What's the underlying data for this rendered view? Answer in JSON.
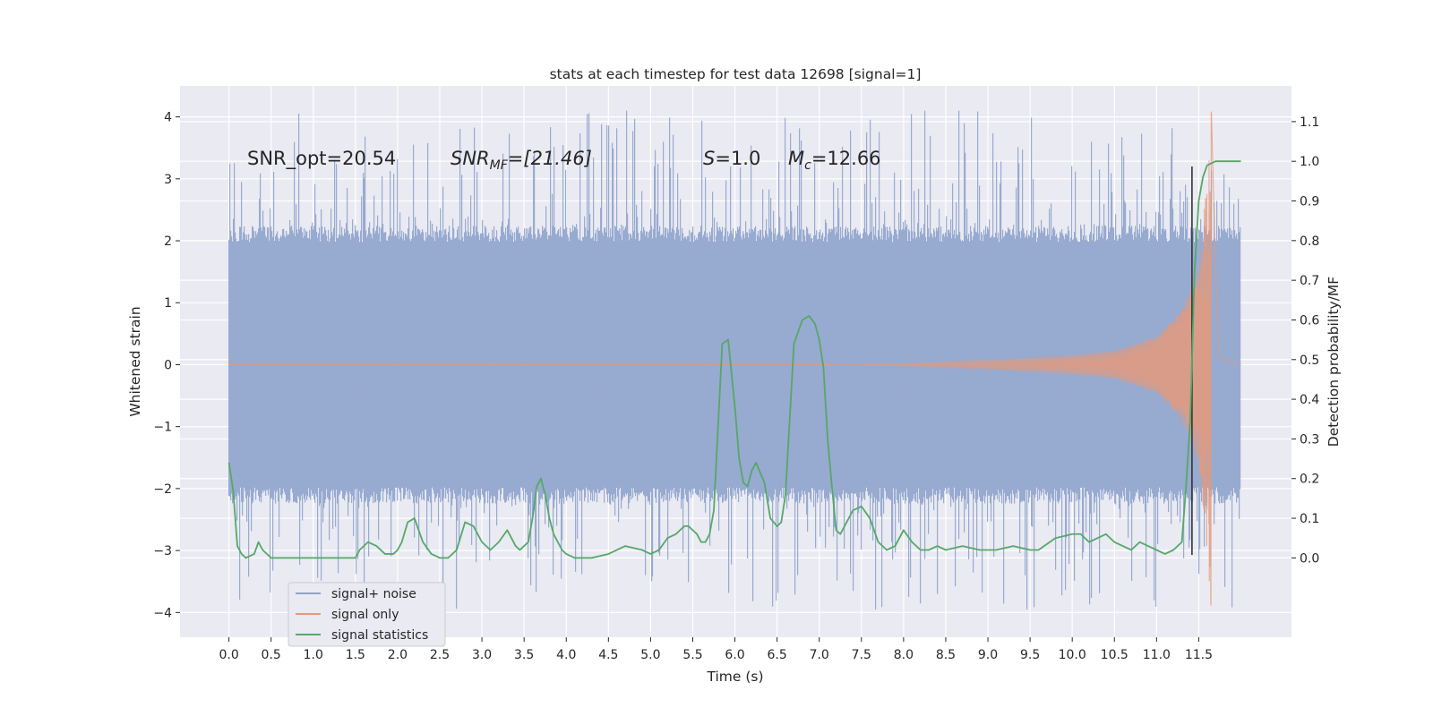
{
  "chart_data": {
    "type": "line",
    "title": "stats at each timestep for test data 12698 [signal=1]",
    "xlabel": "Time (s)",
    "ylabel": "Whitened strain",
    "ylabel_right": "Detection probability/MF",
    "xlim": [
      -0.58,
      12.6
    ],
    "ylim": [
      -4.4,
      4.5
    ],
    "ylim_right": [
      -0.2,
      1.19
    ],
    "x_ticks": [
      0.0,
      0.5,
      1.0,
      1.5,
      2.0,
      2.5,
      3.0,
      3.5,
      4.0,
      4.5,
      5.0,
      5.5,
      6.0,
      6.5,
      7.0,
      7.5,
      8.0,
      8.5,
      9.0,
      9.5,
      10.0,
      10.5,
      11.0,
      11.5
    ],
    "y_ticks": [
      -4,
      -3,
      -2,
      -1,
      0,
      1,
      2,
      3,
      4
    ],
    "y_ticks_right": [
      0.0,
      0.1,
      0.2,
      0.3,
      0.4,
      0.5,
      0.6,
      0.7,
      0.8,
      0.9,
      1.0,
      1.1
    ],
    "grid": true,
    "legend_position": "lower-left",
    "annotations": {
      "snr_opt": "SNR_opt=20.54",
      "snr_mf_label": "SNR",
      "snr_mf_sub": "MF",
      "snr_mf_value": "=[21.46]",
      "s_label": "S",
      "s_value": "=1.0",
      "mc_label": "M",
      "mc_sub": "c",
      "mc_value": "=12.66"
    },
    "series": [
      {
        "name": "signal+ noise",
        "axis": "left",
        "color": "#8fa3cc",
        "x_range": [
          0.0,
          12.0
        ],
        "envelope": {
          "typical_lower": -2.2,
          "typical_upper": 2.2,
          "peak_lower": -3.95,
          "peak_upper": 4.1
        }
      },
      {
        "name": "signal only",
        "axis": "left",
        "color": "#e39a7b",
        "x_range": [
          0.0,
          12.0
        ],
        "description": "chirp, amplitude growing to peak near 11.65 s",
        "amplitude_points": [
          [
            0.0,
            0.0
          ],
          [
            7.0,
            0.005
          ],
          [
            8.0,
            0.02
          ],
          [
            9.0,
            0.07
          ],
          [
            10.0,
            0.15
          ],
          [
            10.5,
            0.22
          ],
          [
            11.0,
            0.45
          ],
          [
            11.3,
            0.9
          ],
          [
            11.5,
            1.6
          ],
          [
            11.6,
            3.0
          ],
          [
            11.65,
            4.1
          ],
          [
            11.7,
            1.5
          ],
          [
            11.75,
            0.1
          ],
          [
            12.0,
            0.0
          ]
        ]
      },
      {
        "name": "signal statistics",
        "axis": "right",
        "color": "#55a868",
        "x": [
          0.0,
          0.05,
          0.1,
          0.15,
          0.2,
          0.3,
          0.35,
          0.4,
          0.5,
          0.6,
          0.7,
          0.8,
          0.9,
          1.0,
          1.2,
          1.4,
          1.5,
          1.55,
          1.65,
          1.75,
          1.85,
          1.95,
          2.0,
          2.05,
          2.12,
          2.2,
          2.3,
          2.4,
          2.5,
          2.6,
          2.7,
          2.8,
          2.9,
          3.0,
          3.1,
          3.2,
          3.3,
          3.4,
          3.45,
          3.5,
          3.55,
          3.6,
          3.65,
          3.7,
          3.75,
          3.8,
          3.85,
          3.9,
          3.95,
          4.0,
          4.1,
          4.2,
          4.3,
          4.5,
          4.7,
          4.9,
          5.0,
          5.1,
          5.2,
          5.3,
          5.4,
          5.45,
          5.5,
          5.55,
          5.6,
          5.65,
          5.7,
          5.75,
          5.85,
          5.92,
          6.0,
          6.05,
          6.1,
          6.15,
          6.2,
          6.25,
          6.35,
          6.42,
          6.5,
          6.55,
          6.6,
          6.7,
          6.8,
          6.88,
          6.95,
          7.0,
          7.05,
          7.1,
          7.15,
          7.2,
          7.25,
          7.3,
          7.4,
          7.5,
          7.6,
          7.7,
          7.8,
          7.9,
          8.0,
          8.1,
          8.2,
          8.3,
          8.4,
          8.5,
          8.7,
          8.9,
          9.1,
          9.3,
          9.5,
          9.6,
          9.8,
          10.0,
          10.1,
          10.2,
          10.3,
          10.4,
          10.5,
          10.6,
          10.7,
          10.8,
          10.9,
          11.0,
          11.1,
          11.2,
          11.3,
          11.35,
          11.4,
          11.45,
          11.5,
          11.55,
          11.6,
          11.7,
          11.8,
          11.9,
          12.0
        ],
        "values": [
          0.24,
          0.17,
          0.03,
          0.01,
          0.0,
          0.01,
          0.04,
          0.02,
          0.0,
          0.0,
          0.0,
          0.0,
          0.0,
          0.0,
          0.0,
          0.0,
          0.0,
          0.02,
          0.04,
          0.03,
          0.01,
          0.01,
          0.02,
          0.04,
          0.09,
          0.1,
          0.04,
          0.01,
          0.0,
          0.0,
          0.02,
          0.09,
          0.08,
          0.04,
          0.02,
          0.04,
          0.07,
          0.03,
          0.02,
          0.03,
          0.04,
          0.1,
          0.18,
          0.2,
          0.16,
          0.1,
          0.06,
          0.04,
          0.02,
          0.01,
          0.0,
          0.0,
          0.0,
          0.01,
          0.03,
          0.02,
          0.01,
          0.02,
          0.05,
          0.06,
          0.08,
          0.08,
          0.07,
          0.06,
          0.04,
          0.04,
          0.06,
          0.12,
          0.54,
          0.55,
          0.38,
          0.25,
          0.19,
          0.18,
          0.22,
          0.24,
          0.19,
          0.1,
          0.08,
          0.09,
          0.16,
          0.54,
          0.6,
          0.61,
          0.59,
          0.55,
          0.48,
          0.3,
          0.18,
          0.07,
          0.06,
          0.08,
          0.12,
          0.13,
          0.1,
          0.04,
          0.02,
          0.03,
          0.07,
          0.04,
          0.02,
          0.02,
          0.03,
          0.02,
          0.03,
          0.02,
          0.02,
          0.03,
          0.02,
          0.02,
          0.05,
          0.06,
          0.06,
          0.04,
          0.05,
          0.06,
          0.04,
          0.03,
          0.02,
          0.04,
          0.03,
          0.02,
          0.01,
          0.02,
          0.04,
          0.18,
          0.35,
          0.72,
          0.9,
          0.96,
          0.99,
          1.0,
          1.0,
          1.0,
          1.0
        ]
      }
    ],
    "vertical_line": {
      "x": 11.42,
      "y_from": -3.07,
      "y_to": 3.2,
      "color": "#333333"
    }
  }
}
